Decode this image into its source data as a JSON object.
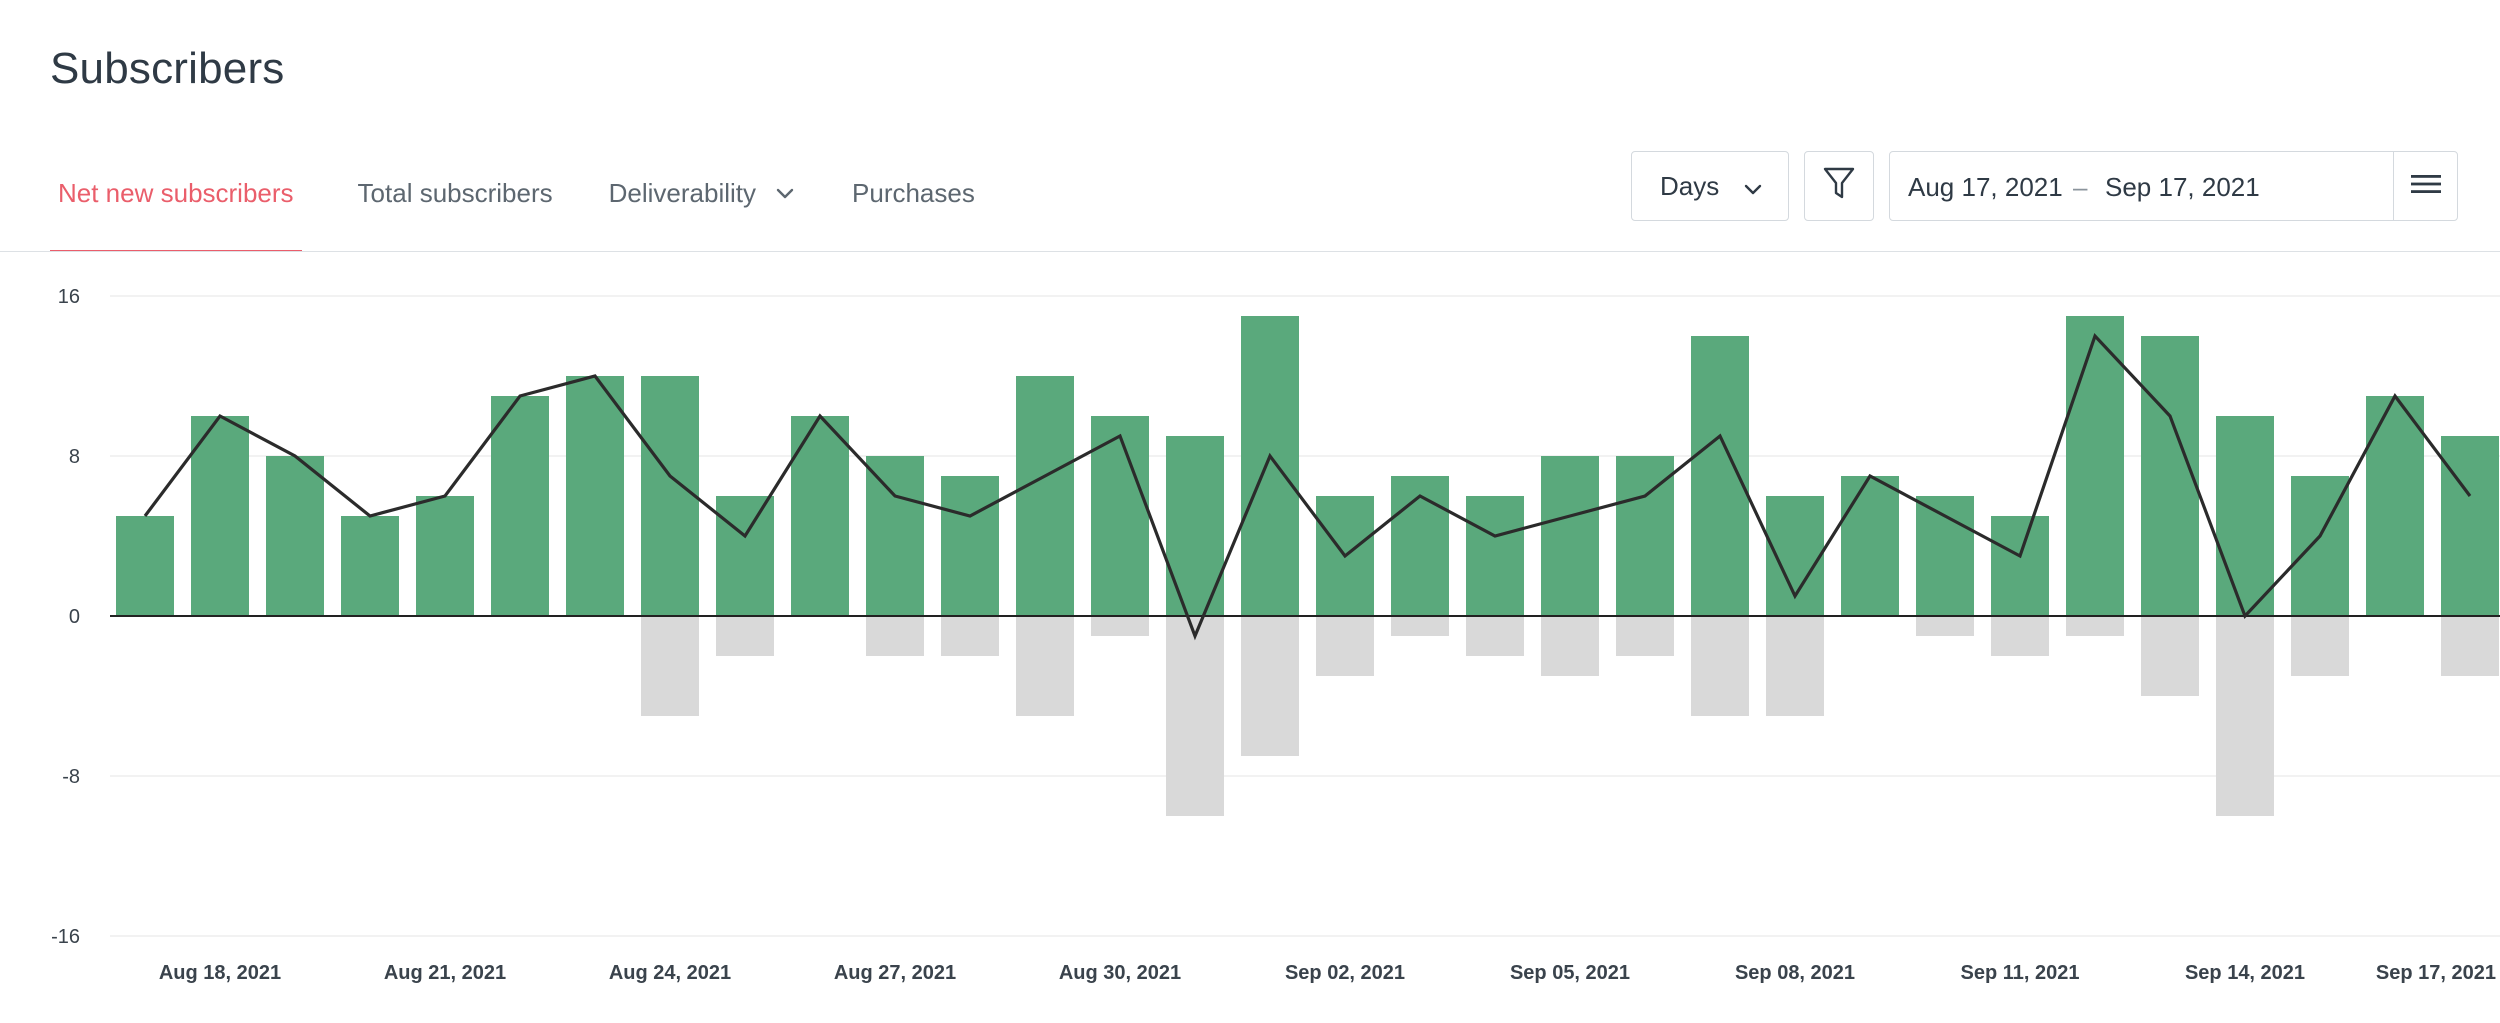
{
  "header": {
    "title": "Subscribers"
  },
  "tabs": [
    {
      "label": "Net new subscribers",
      "active": true
    },
    {
      "label": "Total subscribers",
      "active": false
    },
    {
      "label": "Deliverability",
      "active": false,
      "has_dropdown": true
    },
    {
      "label": "Purchases",
      "active": false
    }
  ],
  "toolbar": {
    "granularity": "Days",
    "filter_icon": "filter-icon",
    "date_start": "Aug 17, 2021",
    "date_separator": "–",
    "date_end": "Sep 17, 2021",
    "menu_icon": "hamburger-icon"
  },
  "chart_data": {
    "type": "bar",
    "x_start": "Aug 17, 2021",
    "x_tick_labels": [
      "Aug 18, 2021",
      "Aug 21, 2021",
      "Aug 24, 2021",
      "Aug 27, 2021",
      "Aug 30, 2021",
      "Sep 02, 2021",
      "Sep 05, 2021",
      "Sep 08, 2021",
      "Sep 11, 2021",
      "Sep 14, 2021",
      "Sep 17, 2021"
    ],
    "y_ticks": [
      16,
      8,
      0,
      -8,
      -16
    ],
    "ylim": [
      -16,
      16
    ],
    "grid": true,
    "legend": "none",
    "series": [
      {
        "type": "bar",
        "color": "#5aa97c",
        "values": [
          5,
          10,
          8,
          5,
          6,
          11,
          12,
          12,
          6,
          10,
          8,
          7,
          12,
          10,
          9,
          15,
          6,
          7,
          6,
          8,
          8,
          14,
          6,
          7,
          6,
          5,
          15,
          14,
          10,
          7,
          11,
          9
        ]
      },
      {
        "type": "bar",
        "color": "#d9d9d9",
        "values": [
          0,
          0,
          0,
          0,
          0,
          0,
          0,
          -5,
          -2,
          0,
          -2,
          -2,
          -5,
          -1,
          -10,
          -7,
          -3,
          -1,
          -2,
          -3,
          -2,
          -5,
          -5,
          0,
          -1,
          -2,
          -1,
          -4,
          -10,
          -3,
          0,
          -3
        ]
      },
      {
        "type": "line",
        "color": "#2b2b2b",
        "values": [
          5,
          10,
          8,
          5,
          6,
          11,
          12,
          7,
          4,
          10,
          6,
          5,
          7,
          9,
          -1,
          8,
          3,
          6,
          4,
          5,
          6,
          9,
          1,
          7,
          5,
          3,
          14,
          10,
          0,
          4,
          11,
          6
        ]
      }
    ]
  }
}
